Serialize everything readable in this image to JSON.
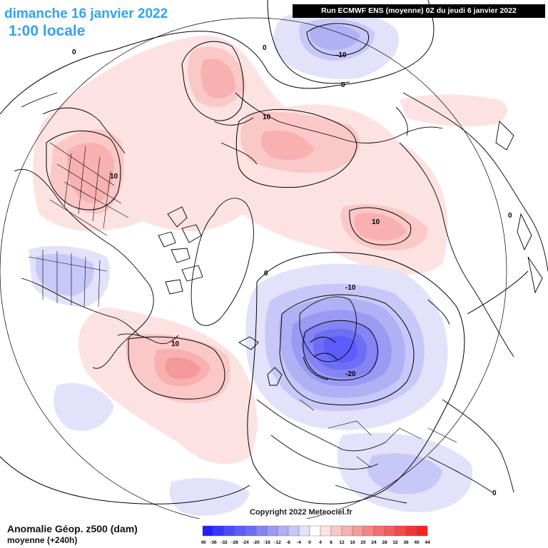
{
  "header": {
    "date_title": "dimanche 16 janvier 2022",
    "time_title": "1:00 locale",
    "run_info": "Run ECMWF ENS (moyenne) 0Z du jeudi 6 janvier 2022"
  },
  "footer": {
    "title": "Anomalie Géop. z500 (dam)",
    "subtitle": "moyenne   (+240h)",
    "copyright": "Copyright 2022 Meteociel.fr"
  },
  "legend": {
    "ticks": [
      "-40",
      "-36",
      "-32",
      "-28",
      "-24",
      "-20",
      "-16",
      "-12",
      "-8",
      "-4",
      "0",
      "4",
      "8",
      "12",
      "16",
      "20",
      "24",
      "28",
      "32",
      "36",
      "40",
      "44"
    ],
    "colors": [
      "#2020ff",
      "#3535ff",
      "#4a4aff",
      "#5c5cff",
      "#6e6ef5",
      "#8484f5",
      "#9a9af5",
      "#b0b0f5",
      "#c8c8f8",
      "#e2e2fb",
      "#ffffff",
      "#fde2e2",
      "#fbc8c8",
      "#f8b0b0",
      "#f59a9a",
      "#f58484",
      "#f56e6e",
      "#f55c5c",
      "#f54a4a",
      "#f53535",
      "#ff2020"
    ]
  },
  "contour_labels": [
    "0",
    "10",
    "-10",
    "-20"
  ],
  "colors": {
    "title_blue": "#33a3ea",
    "positive_light": "#fde2e2",
    "positive_mid": "#fbc8c8",
    "positive_strong": "#f59a9a",
    "negative_light": "#e2e2fb",
    "negative_mid": "#b0b0f5",
    "negative_strong": "#5c5cff"
  }
}
